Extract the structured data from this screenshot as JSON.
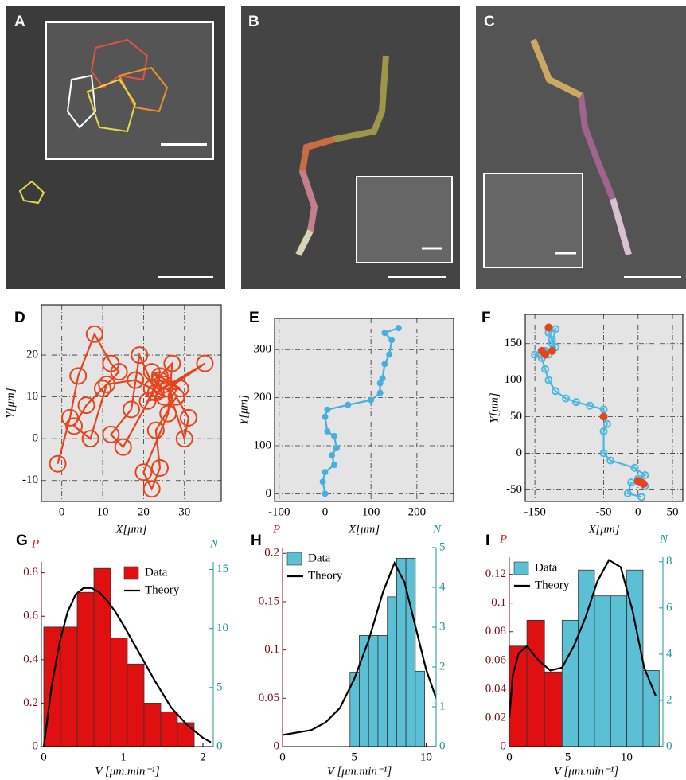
{
  "images": [
    {
      "label": "A"
    },
    {
      "label": "B"
    },
    {
      "label": "C"
    }
  ],
  "chart_data": [
    {
      "type": "line",
      "panel": "D",
      "xlabel": "X[μm]",
      "ylabel": "Y[μm]",
      "grid": true,
      "marker": "open-circle",
      "xlim": [
        -5,
        39
      ],
      "ylim": [
        -15,
        32
      ],
      "xticks": [
        0,
        10,
        20,
        30
      ],
      "yticks": [
        -10,
        0,
        10,
        20
      ],
      "series": [
        {
          "color": "#e8441c",
          "x": [
            -1,
            2,
            4,
            8,
            12,
            14,
            10,
            6,
            3,
            7,
            11,
            18,
            22,
            25,
            21,
            24,
            27,
            26,
            20,
            22,
            24,
            23,
            28,
            31,
            30,
            26,
            35,
            23,
            19,
            17,
            12,
            15,
            24,
            29,
            22,
            25
          ],
          "values": [
            -6,
            5,
            15,
            25,
            18,
            16,
            12,
            8,
            3,
            0,
            13,
            14,
            12,
            10,
            9,
            15,
            18,
            6,
            -8,
            -12,
            -7,
            2,
            10,
            5,
            0,
            12,
            18,
            11,
            20,
            7,
            1,
            -2,
            14,
            12,
            16,
            13
          ]
        }
      ]
    },
    {
      "type": "line",
      "panel": "E",
      "xlabel": "X[μm]",
      "ylabel": "Y[μm]",
      "grid": true,
      "marker": "dot",
      "xlim": [
        -110,
        280
      ],
      "ylim": [
        -16,
        365
      ],
      "xticks": [
        -100,
        0,
        100,
        200
      ],
      "yticks": [
        0,
        100,
        200,
        300
      ],
      "series": [
        {
          "color": "#45b0e0",
          "x": [
            0,
            -5,
            0,
            20,
            15,
            25,
            20,
            5,
            0,
            5,
            50,
            100,
            120,
            120,
            125,
            130,
            140,
            145,
            130,
            160
          ],
          "values": [
            0,
            25,
            45,
            60,
            80,
            95,
            120,
            130,
            160,
            175,
            185,
            195,
            210,
            230,
            240,
            270,
            290,
            320,
            335,
            345
          ]
        }
      ]
    },
    {
      "type": "line",
      "panel": "F",
      "xlabel": "X[μm]",
      "ylabel": "Y[μm]",
      "grid": true,
      "marker": "open-circle-small",
      "xlim": [
        -164,
        65
      ],
      "ylim": [
        -66,
        190
      ],
      "xticks": [
        -150,
        -50,
        0,
        50
      ],
      "yticks": [
        -50,
        0,
        50,
        100,
        150
      ],
      "series": [
        {
          "color": "#4bb8e0",
          "x": [
            5,
            -15,
            -10,
            10,
            0,
            10,
            -5,
            -40,
            -50,
            -50,
            -45,
            -50,
            -50,
            -70,
            -90,
            -105,
            -120,
            -130,
            -135,
            -140,
            -150,
            -135,
            -120,
            -125,
            -130,
            -120,
            -125,
            -130
          ],
          "values": [
            -60,
            -55,
            -40,
            -45,
            -35,
            -30,
            -20,
            -10,
            0,
            30,
            40,
            50,
            60,
            65,
            70,
            75,
            85,
            100,
            115,
            130,
            135,
            140,
            145,
            155,
            165,
            170,
            150,
            135
          ]
        },
        {
          "color": "#e8441c",
          "line": false,
          "x": [
            -130,
            -140,
            -135,
            -125,
            -50,
            0,
            5,
            8
          ],
          "values": [
            172,
            140,
            135,
            140,
            50,
            -38,
            -40,
            -42
          ]
        }
      ]
    },
    {
      "type": "histogram",
      "panel": "G",
      "xlabel": "V [μm.min⁻¹]",
      "ylabel": "P",
      "y2label": "N",
      "legend": "upper right",
      "xlim": [
        -0.03,
        2.13
      ],
      "ylim": [
        0,
        0.85
      ],
      "y2lim": [
        0,
        15.64
      ],
      "xticks": [
        0,
        1,
        2
      ],
      "yticks": [
        0,
        0.2,
        0.4,
        0.6,
        0.8
      ],
      "y2ticks": [
        0,
        5,
        10,
        15
      ],
      "series": [
        {
          "name": "Data",
          "color": "#e01010",
          "bins": [
            0,
            0.21,
            0.42,
            0.63,
            0.84,
            1.05,
            1.26,
            1.47,
            1.68,
            1.89
          ],
          "values": [
            0.55,
            0.55,
            0.71,
            0.82,
            0.5,
            0.38,
            0.2,
            0.16,
            0.11
          ]
        },
        {
          "name": "Theory",
          "color": "#000000",
          "x": [
            0,
            0.1,
            0.2,
            0.3,
            0.4,
            0.5,
            0.6,
            0.7,
            0.8,
            0.9,
            1.0,
            1.2,
            1.4,
            1.6,
            1.8,
            2.0,
            2.1
          ],
          "values": [
            0,
            0.28,
            0.48,
            0.62,
            0.7,
            0.73,
            0.73,
            0.71,
            0.67,
            0.62,
            0.56,
            0.43,
            0.3,
            0.18,
            0.1,
            0.04,
            0.02
          ]
        }
      ]
    },
    {
      "type": "histogram",
      "panel": "H",
      "xlabel": "V [μm.min⁻¹]",
      "ylabel": "P",
      "y2label": "N",
      "legend": "upper left",
      "xlim": [
        0,
        10.7
      ],
      "ylim": [
        0,
        0.206
      ],
      "y2lim": [
        0,
        5
      ],
      "xticks": [
        0,
        5,
        10
      ],
      "yticks": [
        0,
        0.05,
        0.1,
        0.15,
        0.2
      ],
      "y2ticks": [
        0,
        1,
        2,
        3,
        4,
        5
      ],
      "series": [
        {
          "name": "Data",
          "color": "#5bc0d6",
          "bins": [
            4.7,
            5.35,
            6.0,
            6.65,
            7.3,
            7.95,
            8.6,
            9.25,
            9.9
          ],
          "values": [
            0.077,
            0.115,
            0.115,
            0.115,
            0.155,
            0.195,
            0.195,
            0.078
          ]
        },
        {
          "name": "Theory",
          "color": "#000000",
          "x": [
            0,
            2,
            3,
            4,
            5,
            6,
            7,
            7.8,
            8.5,
            9,
            9.5,
            10,
            10.7
          ],
          "values": [
            0.012,
            0.017,
            0.025,
            0.04,
            0.07,
            0.11,
            0.16,
            0.19,
            0.17,
            0.14,
            0.11,
            0.08,
            0.05
          ]
        }
      ]
    },
    {
      "type": "histogram",
      "panel": "I",
      "xlabel": "V [μm.min⁻¹]",
      "ylabel": "P",
      "y2label": "N",
      "legend": "upper left",
      "xlim": [
        0,
        13.1
      ],
      "ylim": [
        0,
        0.132
      ],
      "y2lim": [
        0,
        8.2
      ],
      "xticks": [
        0,
        5,
        10
      ],
      "yticks": [
        0,
        0.02,
        0.04,
        0.06,
        0.08,
        0.1,
        0.12
      ],
      "y2ticks": [
        0,
        2,
        4,
        6,
        8
      ],
      "series": [
        {
          "color": "#e01010",
          "bins": [
            0,
            1.5,
            3,
            4.5
          ],
          "values": [
            0.07,
            0.088,
            0.052
          ]
        },
        {
          "name": "Data",
          "color": "#5bc0d6",
          "bins": [
            4.5,
            5.88,
            7.26,
            8.64,
            10.02,
            11.4,
            12.78
          ],
          "values": [
            0.088,
            0.123,
            0.105,
            0.105,
            0.123,
            0.053
          ]
        },
        {
          "name": "Theory",
          "color": "#000000",
          "x": [
            0,
            0.3,
            0.8,
            1.5,
            2.5,
            3.5,
            4.5,
            5.5,
            6.5,
            7.5,
            8.5,
            9.5,
            10.5,
            11.5,
            12.5
          ],
          "values": [
            0.02,
            0.05,
            0.065,
            0.07,
            0.06,
            0.053,
            0.055,
            0.07,
            0.09,
            0.115,
            0.13,
            0.125,
            0.095,
            0.055,
            0.035
          ]
        }
      ]
    }
  ]
}
